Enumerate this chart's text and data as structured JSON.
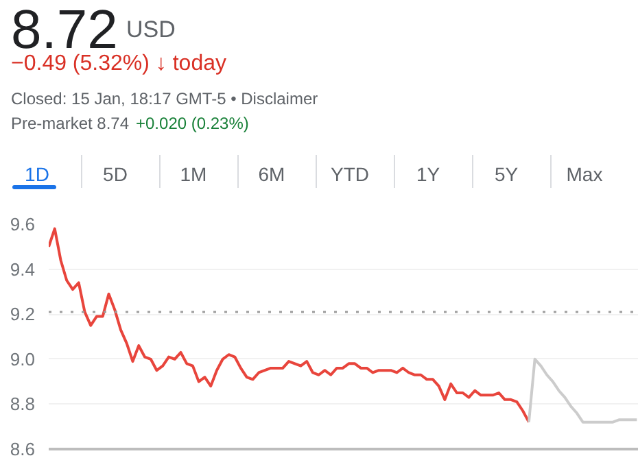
{
  "chart_data": {
    "type": "line",
    "title": "8.72",
    "subtitle": "USD",
    "annotations": [
      "−0.49 (5.32%) ↓ today",
      "Closed: 15 Jan, 18:17 GMT-5 • Disclaimer",
      "Pre-market 8.74",
      "+0.020 (0.23%)",
      "1D",
      "5D",
      "1M",
      "6M",
      "YTD",
      "1Y",
      "5Y",
      "Max"
    ],
    "categories": [
      null,
      null,
      null,
      null,
      null,
      null,
      null,
      null,
      null,
      null,
      null,
      null,
      null,
      null,
      null,
      null,
      null,
      null,
      null,
      null,
      null,
      null,
      null,
      null,
      null,
      null,
      null,
      null,
      null,
      null,
      null,
      null,
      null,
      null,
      null,
      null,
      null,
      null,
      null,
      null,
      null,
      null,
      null,
      null,
      null,
      null,
      null,
      null,
      null,
      null,
      null,
      null,
      null,
      null,
      null,
      null,
      null,
      null,
      null,
      null,
      null,
      null,
      null,
      null,
      null,
      null,
      null,
      null,
      null,
      null,
      null,
      null,
      null,
      null,
      null,
      null,
      null,
      null,
      null,
      null,
      null,
      null,
      null,
      null,
      null,
      null,
      null,
      null,
      null,
      null,
      null,
      null,
      null,
      null,
      null,
      null,
      null,
      null,
      null
    ],
    "series": [
      {
        "color": "#e8453c",
        "values": [
          9.5,
          9.58,
          9.44,
          9.35,
          9.31,
          9.34,
          9.21,
          9.15,
          9.19,
          9.19,
          9.29,
          9.22,
          9.13,
          9.07,
          8.99,
          9.06,
          9.01,
          9.0,
          8.95,
          8.97,
          9.01,
          9.0,
          9.03,
          8.98,
          8.97,
          8.9,
          8.92,
          8.88,
          8.95,
          9.0,
          9.02,
          9.01,
          8.96,
          8.92,
          8.91,
          8.94,
          8.95,
          8.96,
          8.96,
          8.96,
          8.99,
          8.98,
          8.97,
          8.99,
          8.94,
          8.93,
          8.95,
          8.93,
          8.96,
          8.96,
          8.98,
          8.98,
          8.96,
          8.96,
          8.94,
          8.95,
          8.95,
          8.95,
          8.94,
          8.96,
          8.94,
          8.93,
          8.93,
          8.91,
          8.91,
          8.88,
          8.82,
          8.89,
          8.85,
          8.85,
          8.83,
          8.86,
          8.84,
          8.84,
          8.84,
          8.85,
          8.82,
          8.82,
          8.81,
          8.77,
          8.72,
          null,
          null,
          null,
          null,
          null,
          null,
          null,
          null,
          null,
          null,
          null,
          null,
          null,
          null,
          null,
          null,
          null,
          null
        ]
      },
      {
        "color": "#cccccc",
        "values": [
          null,
          null,
          null,
          null,
          null,
          null,
          null,
          null,
          null,
          null,
          null,
          null,
          null,
          null,
          null,
          null,
          null,
          null,
          null,
          null,
          null,
          null,
          null,
          null,
          null,
          null,
          null,
          null,
          null,
          null,
          null,
          null,
          null,
          null,
          null,
          null,
          null,
          null,
          null,
          null,
          null,
          null,
          null,
          null,
          null,
          null,
          null,
          null,
          null,
          null,
          null,
          null,
          null,
          null,
          null,
          null,
          null,
          null,
          null,
          null,
          null,
          null,
          null,
          null,
          null,
          null,
          null,
          null,
          null,
          null,
          null,
          null,
          null,
          null,
          null,
          null,
          null,
          null,
          null,
          null,
          8.72,
          9.0,
          8.97,
          8.93,
          8.9,
          8.86,
          8.83,
          8.79,
          8.76,
          8.72,
          8.72,
          8.72,
          8.72,
          8.72,
          8.72,
          8.73,
          8.73,
          8.73,
          8.73
        ]
      }
    ],
    "ylim": [
      8.6,
      9.6
    ],
    "yticks": [
      8.6,
      8.8,
      {
        "value": 9.0,
        "label": "9.0"
      },
      9.2,
      9.4,
      9.6
    ],
    "ref_lines": [
      {
        "axis": "y",
        "value": 9.21,
        "color": "#9e9e9e",
        "line_style": "dotted"
      }
    ],
    "grid": "y",
    "tick_labels": "y"
  }
}
